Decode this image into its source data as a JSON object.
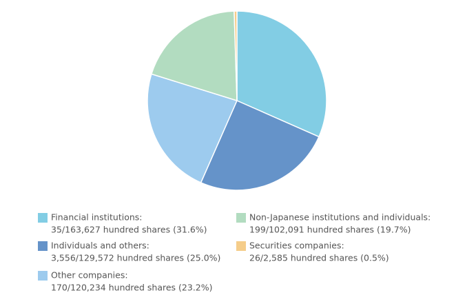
{
  "chart_data": {
    "type": "pie",
    "categories": [
      "Financial institutions:",
      "Individuals and others:",
      "Other companies:",
      "Non-Japanese institutions and individuals:",
      "Securities companies:"
    ],
    "values": [
      31.6,
      25.0,
      23.2,
      19.7,
      0.5
    ],
    "value_labels": [
      "35/163,627 hundred shares (31.6%)",
      "3,556/129,572 hundred shares (25.0%)",
      "170/120,234 hundred shares (23.2%)",
      "199/102,091 hundred shares (19.7%)",
      "26/2,585 hundred shares (0.5%)"
    ],
    "colors": [
      "#82cde4",
      "#6593c9",
      "#9dcbee",
      "#b2dcc0",
      "#f5cd8a"
    ]
  }
}
